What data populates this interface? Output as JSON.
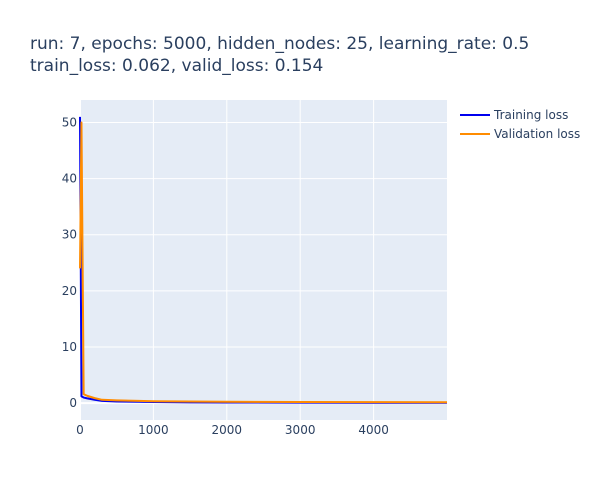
{
  "chart_data": {
    "type": "line",
    "title_lines": [
      "run: 7, epochs: 5000, hidden_nodes: 25, learning_rate: 0.5",
      "train_loss: 0.062, valid_loss: 0.154"
    ],
    "xlabel": "",
    "ylabel": "",
    "xlim": [
      0,
      5000
    ],
    "ylim": [
      -3,
      54
    ],
    "x_ticks": [
      0,
      1000,
      2000,
      3000,
      4000
    ],
    "y_ticks": [
      0,
      10,
      20,
      30,
      40,
      50
    ],
    "grid": true,
    "legend_position": "top-right",
    "series": [
      {
        "name": "Training loss",
        "color": "#0000ee",
        "x": [
          0,
          20,
          50,
          100,
          200,
          300,
          500,
          800,
          1000,
          1500,
          2000,
          3000,
          4000,
          5000
        ],
        "y": [
          51.0,
          1.2,
          1.0,
          0.85,
          0.6,
          0.4,
          0.3,
          0.25,
          0.2,
          0.15,
          0.12,
          0.09,
          0.075,
          0.062
        ]
      },
      {
        "name": "Validation loss",
        "color": "#ff8c00",
        "x": [
          0,
          20,
          50,
          100,
          200,
          300,
          500,
          800,
          1000,
          1500,
          2000,
          3000,
          4000,
          5000
        ],
        "y": [
          24.0,
          50.0,
          1.6,
          1.3,
          0.9,
          0.6,
          0.5,
          0.4,
          0.35,
          0.3,
          0.25,
          0.2,
          0.18,
          0.154
        ]
      }
    ]
  }
}
